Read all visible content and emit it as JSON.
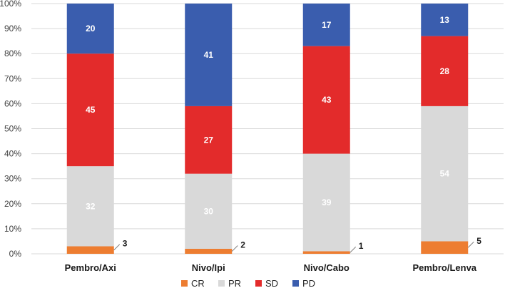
{
  "chart_data": {
    "type": "bar",
    "stacked": true,
    "percent": true,
    "categories": [
      "Pembro/Axi",
      "Nivo/Ipi",
      "Nivo/Cabo",
      "Pembro/Lenva"
    ],
    "series": [
      {
        "name": "CR",
        "color": "#ED7D31",
        "values": [
          3,
          2,
          1,
          5
        ],
        "label_color": "#1a1a1a"
      },
      {
        "name": "PR",
        "color": "#D9D9D9",
        "values": [
          32,
          30,
          39,
          54
        ],
        "label_color": "#ffffff"
      },
      {
        "name": "SD",
        "color": "#E32B2B",
        "values": [
          45,
          27,
          43,
          28
        ],
        "label_color": "#ffffff"
      },
      {
        "name": "PD",
        "color": "#3A5DAE",
        "values": [
          20,
          41,
          17,
          13
        ],
        "label_color": "#ffffff"
      }
    ],
    "ylim": [
      0,
      100
    ],
    "yticks": [
      "0%",
      "10%",
      "20%",
      "30%",
      "40%",
      "50%",
      "60%",
      "70%",
      "80%",
      "90%",
      "100%"
    ],
    "grid": true,
    "legend_position": "bottom"
  }
}
